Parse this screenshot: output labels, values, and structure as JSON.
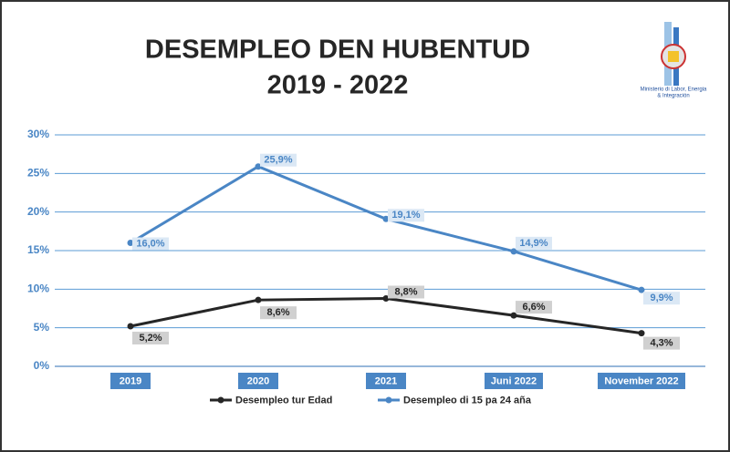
{
  "chart_data": {
    "type": "line",
    "title": "DESEMPLEO DEN HUBENTUD",
    "subtitle": "2019 - 2022",
    "logo_text": [
      "Ministerio di Labor, Energia",
      "& Integración"
    ],
    "categories": [
      "2019",
      "2020",
      "2021",
      "Juni 2022",
      "November 2022"
    ],
    "series": [
      {
        "name": "Desempleo tur Edad",
        "color": "#262626",
        "values": [
          5.2,
          8.6,
          8.8,
          6.6,
          4.3
        ],
        "value_labels": [
          "5,2%",
          "8,6%",
          "8,8%",
          "6,6%",
          "4,3%"
        ]
      },
      {
        "name": "Desempleo di 15 pa 24 aña",
        "color": "#4a86c5",
        "values": [
          16.0,
          25.9,
          19.1,
          14.9,
          9.9
        ],
        "value_labels": [
          "16,0%",
          "25,9%",
          "19,1%",
          "14,9%",
          "9,9%"
        ]
      }
    ],
    "ylim": [
      0,
      30
    ],
    "yticks": [
      {
        "value": 0,
        "label": "0%"
      },
      {
        "value": 5,
        "label": "5%"
      },
      {
        "value": 10,
        "label": "10%"
      },
      {
        "value": 15,
        "label": "15%"
      },
      {
        "value": 20,
        "label": "20%"
      },
      {
        "value": 25,
        "label": "25%"
      },
      {
        "value": 30,
        "label": "30%"
      }
    ],
    "grid": true
  }
}
